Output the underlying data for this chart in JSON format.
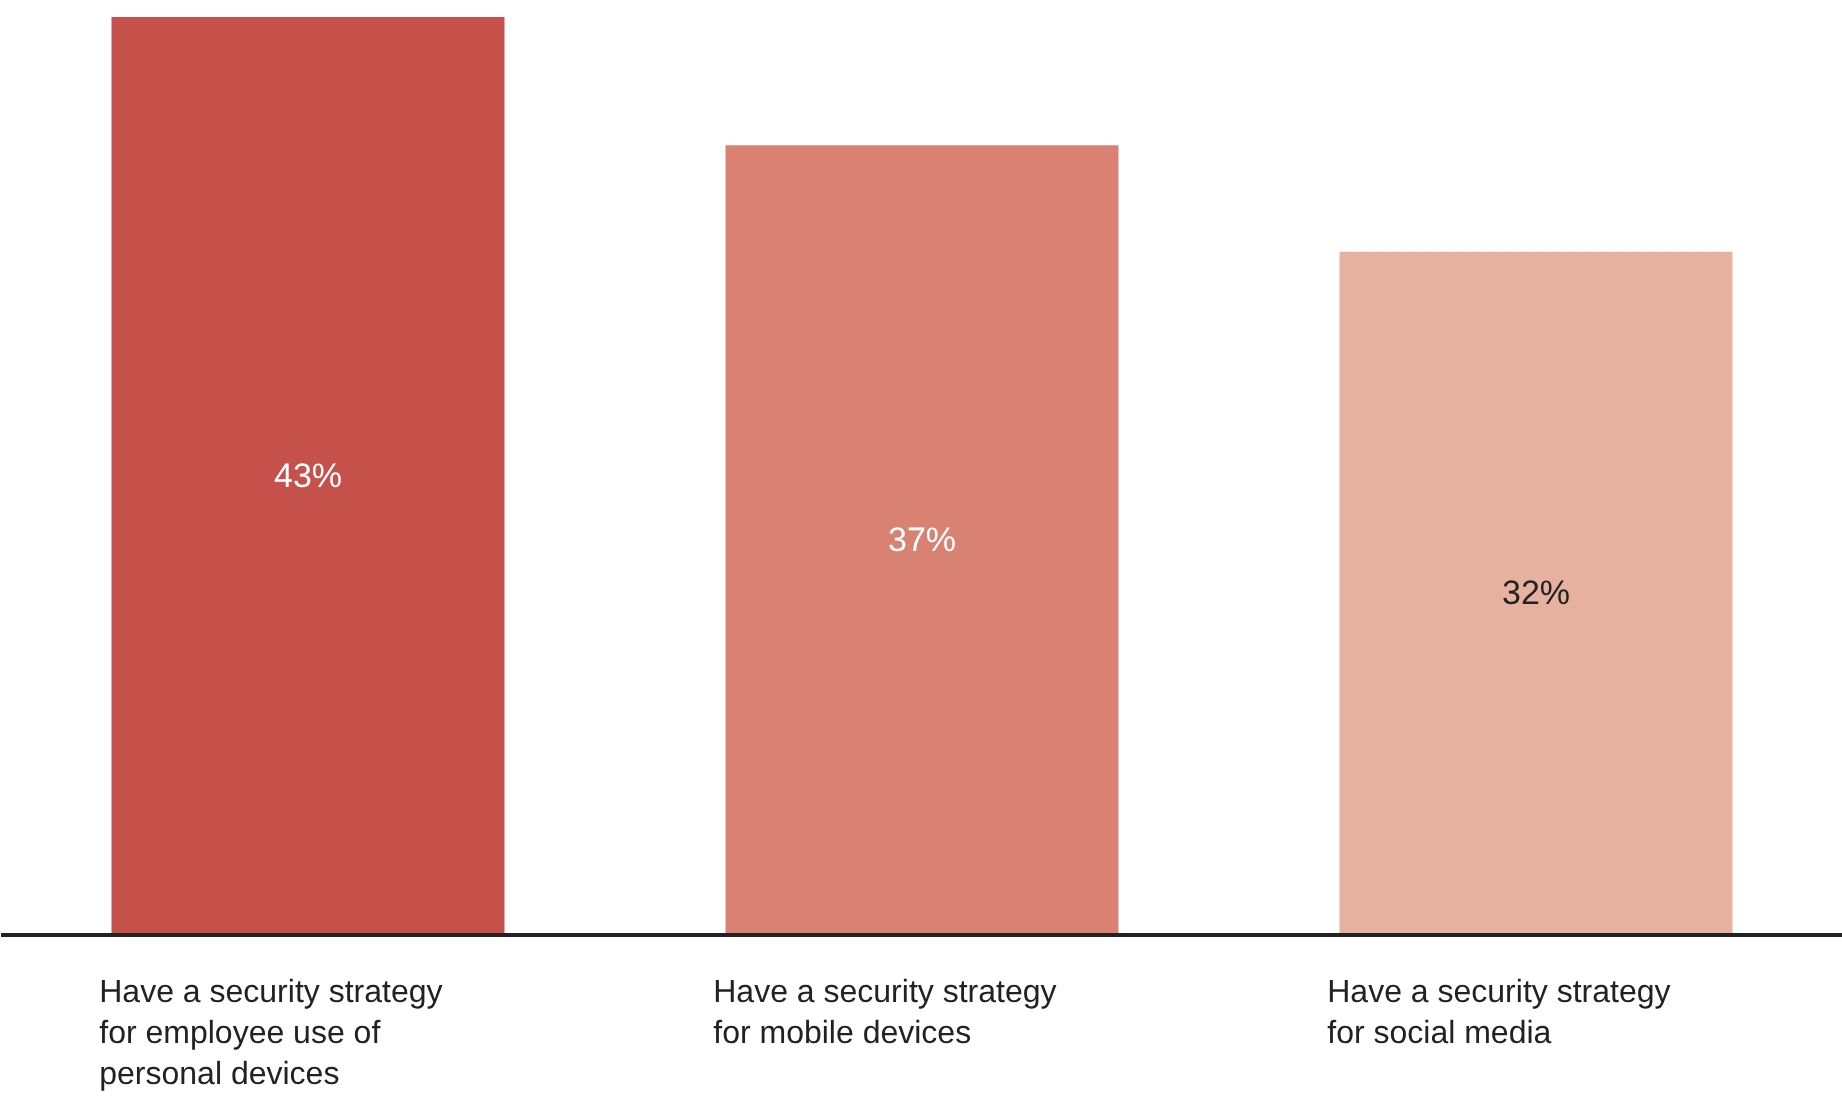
{
  "chart_data": {
    "type": "bar",
    "categories": [
      "Have a security strategy\nfor employee use of\npersonal devices",
      "Have a security strategy\nfor mobile devices",
      "Have a security strategy\nfor social media"
    ],
    "values": [
      43,
      37,
      32
    ],
    "value_labels": [
      "43%",
      "37%",
      "32%"
    ],
    "colors": [
      "#c5514a",
      "#d98273",
      "#e6b19f"
    ]
  }
}
